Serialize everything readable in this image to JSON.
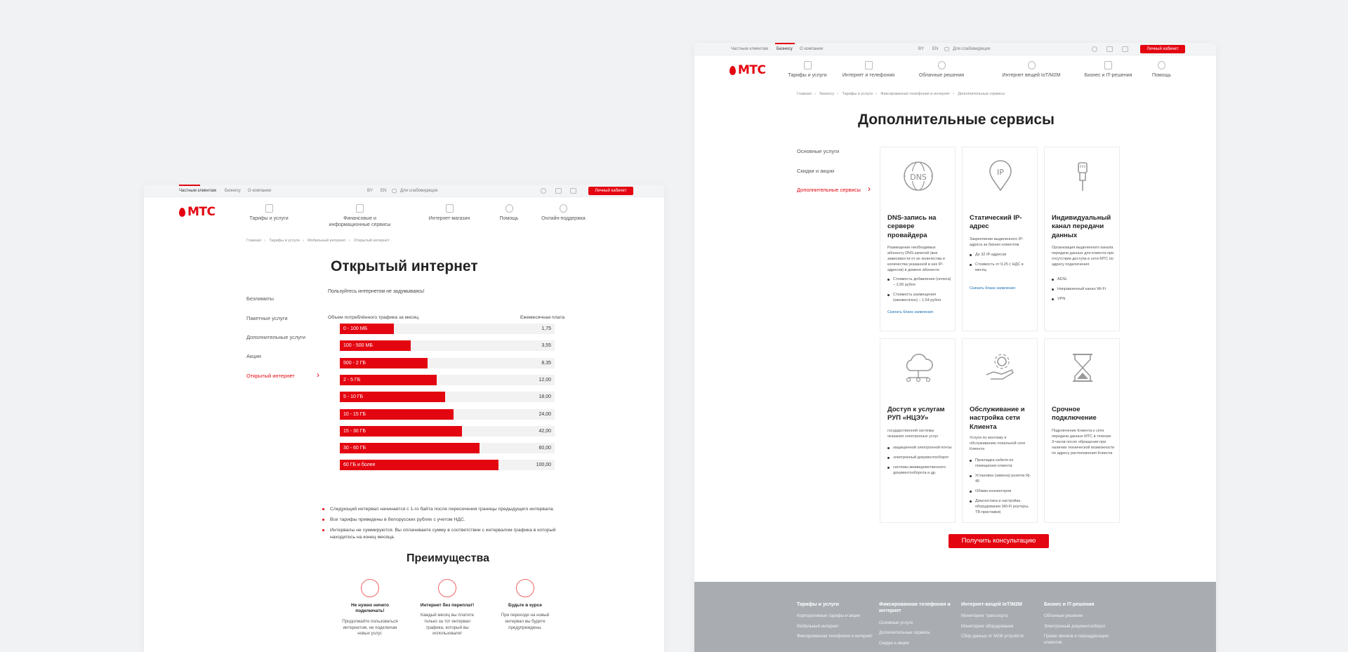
{
  "left_page": {
    "topbar": {
      "tabs": [
        "Частным клиентам",
        "Бизнесу",
        "О компании"
      ],
      "lang": [
        "BY",
        "EN"
      ],
      "accessibility": "Для слабовидящих",
      "account_button": "Личный кабинет"
    },
    "logo_text": "МТС",
    "nav": [
      "Тарифы и услуги",
      "Финансовые и информационные сервисы",
      "Интернет-магазин",
      "Помощь",
      "Онлайн-поддержка"
    ],
    "breadcrumbs": [
      "Главная",
      "Тарифы и услуги",
      "Мобильный интернет",
      "Открытый интернет"
    ],
    "title": "Открытый интернет",
    "side_menu": [
      "Безлимиты",
      "Пакетные услуги",
      "Дополнительные услуги",
      "Акции",
      "Открытый интернет"
    ],
    "lead": "Пользуйтесь интернетом не задумываясь!",
    "table_header_left": "Объем потреблённого трафика за месяц",
    "table_header_right": "Ежемесячная плата",
    "table_rows": [
      {
        "label": "0 - 100 МБ",
        "price": "1,75",
        "fill": 0.25
      },
      {
        "label": "100 - 500 МБ",
        "price": "3,55",
        "fill": 0.33
      },
      {
        "label": "500 - 2 ГБ",
        "price": "8,35",
        "fill": 0.41
      },
      {
        "label": "2 - 5 ГБ",
        "price": "12,00",
        "fill": 0.45
      },
      {
        "label": "5 - 10 ГБ",
        "price": "18,00",
        "fill": 0.49
      },
      {
        "label": "10 - 15 ГБ",
        "price": "24,00",
        "fill": 0.53
      },
      {
        "label": "15 - 30 ГБ",
        "price": "42,00",
        "fill": 0.57
      },
      {
        "label": "30 - 60 ГБ",
        "price": "60,00",
        "fill": 0.65
      },
      {
        "label": "60 ГБ и более",
        "price": "100,00",
        "fill": 0.74
      }
    ],
    "notes": [
      "Следующий интервал начинается с 1-го байта после пересечения границы предыдущего интервала.",
      "Все тарифы приведены в белорусских рублях с учетом НДС.",
      "Интервалы не суммируются. Вы оплачиваете сумму в соответствии с интервалом графика в который находитесь на конец месяца."
    ],
    "advantages_title": "Преимущества",
    "advantages": [
      {
        "title": "Не нужно ничего подключать!",
        "text": "Продолжайте пользоваться интернетом, не подключая новых услуг.",
        "icon": "no-connect-icon"
      },
      {
        "title": "Интернет без переплат!",
        "text": "Каждый месяц вы платите только за тот интервал трафика, который вы использовали!",
        "icon": "piggy-bank-icon"
      },
      {
        "title": "Будьте в курсе",
        "text": "При переходе на новый интервал вы будете предупреждены.",
        "icon": "notify-icon"
      }
    ]
  },
  "right_page": {
    "topbar": {
      "tabs": [
        "Частным клиентам",
        "Бизнесу",
        "О компании"
      ],
      "lang": [
        "BY",
        "EN"
      ],
      "accessibility": "Для слабовидящих",
      "account_button": "Личный кабинет"
    },
    "logo_text": "МТС",
    "nav": [
      "Тарифы и услуги",
      "Интернет и телефония",
      "Облачные решения",
      "Интернет вещей IoT/M2M",
      "Бизнес и IT-решения",
      "Помощь"
    ],
    "breadcrumbs": [
      "Главная",
      "Бизнесу",
      "Тарифы и услуги",
      "Фиксированная телефония и интернет",
      "Дополнительные сервисы"
    ],
    "title": "Дополнительные сервисы",
    "side_menu": [
      "Основные услуги",
      "Скидки и акции",
      "Дополнительные сервисы"
    ],
    "services": [
      {
        "title": "DNS-запись на сервере провайдера",
        "icon": "dns-globe-icon",
        "desc": "Размещение необходимых абоненту DNS-записей (вне зависимости от их количества и количества указанной в них IP-адресов) в домене абонента",
        "items": [
          "Стоимость добавления (оплата) – 2,90 рубля",
          "Стоимость размещения (ежемесячно) – 1,54 рубля"
        ],
        "link": "Скачать бланк заявления"
      },
      {
        "title": "Статический IP-адрес",
        "icon": "ip-pin-icon",
        "desc": "Закрепление выделенного IP-адреса за бизнес-клиентом",
        "items": [
          "До 32 IP-адресов",
          "Стоимость от 9,25 с НДС в месяц"
        ],
        "link": "Скачать бланк заявления"
      },
      {
        "title": "Индивидуальный канал передачи данных",
        "icon": "cable-plug-icon",
        "desc": "Организация выделенного канала передачи данных для клиента при отсутствии доступа в сети МТС по адресу подключения",
        "items": [
          "ADSL",
          "Направленный канал Wi-Fi",
          "VPN"
        ],
        "link": ""
      },
      {
        "title": "Доступ к услугам РУП «НЦЭУ»",
        "icon": "cloud-network-icon",
        "desc": "государственной системы оказания электронных услуг",
        "items": [
          "защищённой электронной почты",
          "электронный документооборот",
          "системы межведомственного документооборота и др."
        ],
        "link": ""
      },
      {
        "title": "Обслуживание и настройка сети Клиента",
        "icon": "gear-hand-icon",
        "desc": "Услуги по монтажу и обслуживанию локальной сети Клиента",
        "items": [
          "Прокладка кабеля по помещению клиента",
          "Установка (замена) розеток Rj-45",
          "Обжим коннекторов",
          "Диагностика и настройка оборудования (Wi-Fi роутеры, ТВ-приставки)"
        ],
        "link": ""
      },
      {
        "title": "Срочное подключение",
        "icon": "hourglass-icon",
        "desc": "Подключение Клиента к сети передачи данных МТС в течение 3-часов после обращения при наличии технической возможности по адресу расположения Клиента",
        "items": [],
        "link": ""
      }
    ],
    "cta": "Получить консультацию",
    "footer": [
      {
        "heading": "Тарифы и услуги",
        "links": [
          "Корпоративные тарифы и акции",
          "Мобильный интернет",
          "Фиксированная телефония и интернет"
        ]
      },
      {
        "heading": "Фиксированная телефония и интернет",
        "links": [
          "Основные услуги",
          "Дополнительные сервисы",
          "Скидки и акции"
        ]
      },
      {
        "heading": "Интернет-вещей IoT/M2M",
        "links": [
          "Мониторинг транспорта",
          "Мониторинг оборудования",
          "Сбор данных от M2M устройств"
        ]
      },
      {
        "heading": "Бизнес и IT-решения",
        "links": [
          "Облачные решения",
          "Электронный документооборот",
          "Прием звонков и переадресация клиентов"
        ]
      }
    ]
  },
  "colors": {
    "brand_red": "#e30611",
    "footer_gray": "#a9adb2",
    "bar_track": "#f2f2f2"
  }
}
